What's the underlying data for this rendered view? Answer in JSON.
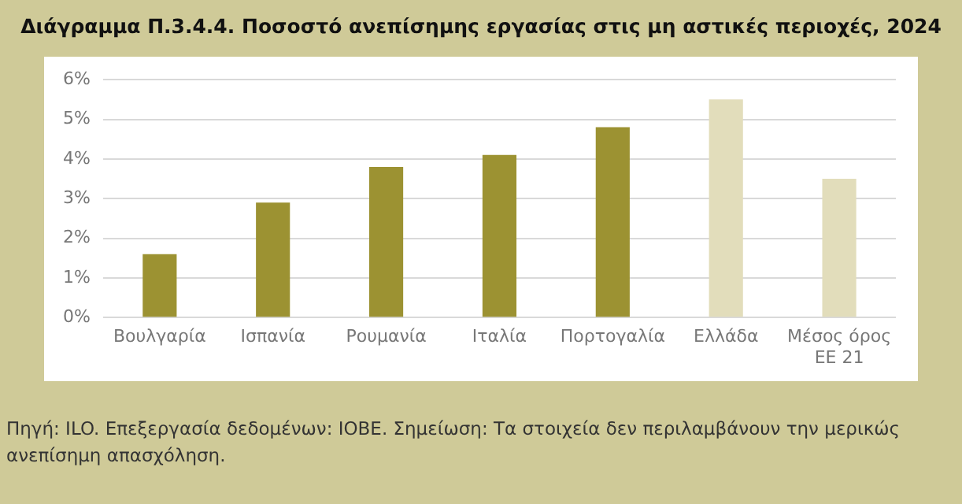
{
  "chart_data": {
    "type": "bar",
    "title": "Διάγραμμα Π.3.4.4. Ποσοστό ανεπίσημης εργασίας στις μη αστικές περιοχές, 2024",
    "categories": [
      "Βουλγαρία",
      "Ισπανία",
      "Ρουμανία",
      "Ιταλία",
      "Πορτογαλία",
      "Ελλάδα",
      "Μέσος όρος\nΕΕ 21"
    ],
    "values": [
      1.6,
      2.9,
      3.8,
      4.1,
      4.8,
      5.5,
      3.5
    ],
    "colors": [
      "#9c9232",
      "#9c9232",
      "#9c9232",
      "#9c9232",
      "#9c9232",
      "#e2ddbb",
      "#e2ddbb"
    ],
    "ylim": [
      0,
      6
    ],
    "yticks": [
      {
        "value": 0,
        "label": "0%"
      },
      {
        "value": 1,
        "label": "1%"
      },
      {
        "value": 2,
        "label": "2%"
      },
      {
        "value": 3,
        "label": "3%"
      },
      {
        "value": 4,
        "label": "4%"
      },
      {
        "value": 5,
        "label": "5%"
      },
      {
        "value": 6,
        "label": "6%"
      }
    ],
    "grid": "y",
    "annotations": [
      "Πηγή: ILO. Επεξεργασία δεδομένων: ΙΟΒΕ. Σημείωση: Τα στοιχεία δεν περιλαμβάνουν την μερικώς ανεπίσημη απασχόληση."
    ]
  }
}
